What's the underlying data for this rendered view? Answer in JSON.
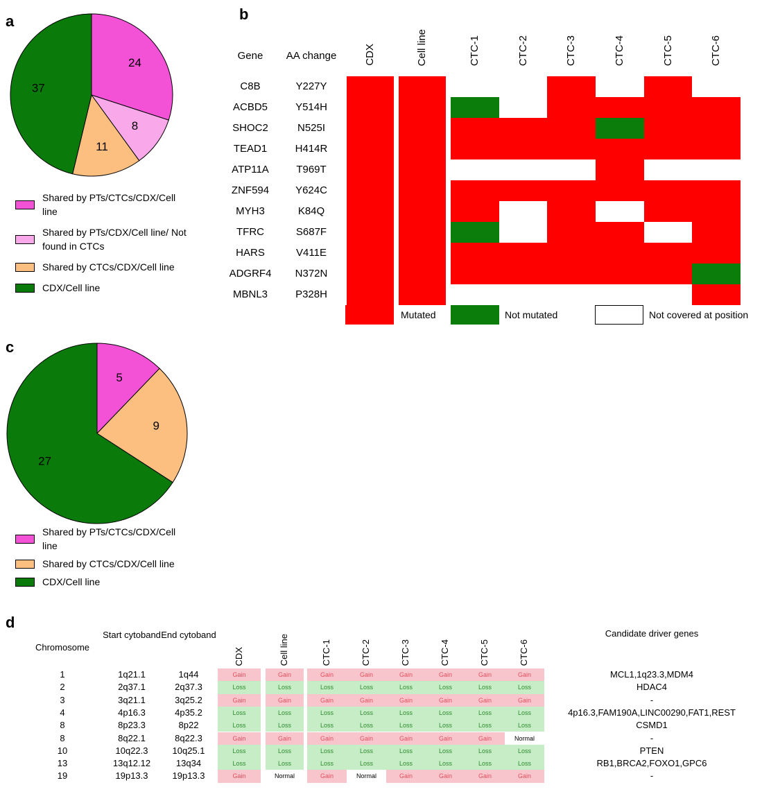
{
  "chart_data": [
    {
      "type": "pie",
      "label": "a",
      "categories": [
        "Shared by PTs/CTCs/CDX/Cell line",
        "Shared by PTs/CDX/Cell line/ Not found in CTCs",
        "Shared by CTCs/CDX/Cell line",
        "CDX/Cell line"
      ],
      "values": [
        24,
        8,
        11,
        37
      ],
      "colors": [
        "#f352d6",
        "#f9a9ea",
        "#fdbf80",
        "#0a7a0a"
      ]
    },
    {
      "type": "heatmap",
      "label": "b",
      "row_headers": [
        "Gene",
        "AA change"
      ],
      "columns": [
        "CDX",
        "Cell line",
        "CTC-1",
        "CTC-2",
        "CTC-3",
        "CTC-4",
        "CTC-5",
        "CTC-6"
      ],
      "rows": [
        [
          "C8B",
          "Y227Y"
        ],
        [
          "ACBD5",
          "Y514H"
        ],
        [
          "SHOC2",
          "N525I"
        ],
        [
          "TEAD1",
          "H414R"
        ],
        [
          "ATP11A",
          "T969T"
        ],
        [
          "ZNF594",
          "Y624C"
        ],
        [
          "MYH3",
          "K84Q"
        ],
        [
          "TFRC",
          "S687F"
        ],
        [
          "HARS",
          "V411E"
        ],
        [
          "ADGRF4",
          "N372N"
        ],
        [
          "MBNL3",
          "P328H"
        ]
      ],
      "legend": [
        {
          "name": "Mutated",
          "color": "#ff0000"
        },
        {
          "name": "Not mutated",
          "color": "#0a7d0a"
        },
        {
          "name": "Not covered at position",
          "color": "#ffffff"
        }
      ],
      "matrix": [
        [
          0,
          0,
          2,
          2,
          0,
          2,
          0,
          2
        ],
        [
          0,
          0,
          1,
          2,
          0,
          0,
          0,
          0
        ],
        [
          0,
          0,
          0,
          0,
          0,
          1,
          0,
          0
        ],
        [
          0,
          0,
          0,
          0,
          0,
          0,
          0,
          0
        ],
        [
          0,
          0,
          2,
          2,
          2,
          0,
          2,
          2
        ],
        [
          0,
          0,
          0,
          0,
          0,
          0,
          0,
          0
        ],
        [
          0,
          0,
          0,
          2,
          0,
          2,
          0,
          0
        ],
        [
          0,
          0,
          1,
          2,
          0,
          0,
          2,
          0
        ],
        [
          0,
          0,
          0,
          0,
          0,
          0,
          0,
          0
        ],
        [
          0,
          0,
          0,
          0,
          0,
          0,
          0,
          1
        ],
        [
          0,
          0,
          2,
          2,
          2,
          2,
          2,
          0
        ]
      ]
    },
    {
      "type": "pie",
      "label": "c",
      "categories": [
        "Shared by PTs/CTCs/CDX/Cell line",
        "Shared by CTCs/CDX/Cell line",
        "CDX/Cell line"
      ],
      "values": [
        5,
        9,
        27
      ],
      "colors": [
        "#f352d6",
        "#fdbf80",
        "#0a7a0a"
      ]
    },
    {
      "type": "table",
      "label": "d",
      "header": [
        "Chromosome",
        "Start cytoband",
        "End cytoband",
        "CDX",
        "Cell line",
        "CTC-1",
        "CTC-2",
        "CTC-3",
        "CTC-4",
        "CTC-5",
        "CTC-6",
        "Candidate driver genes"
      ],
      "rows": [
        [
          "1",
          "1q21.1",
          "1q44",
          "Gain",
          "Gain",
          "Gain",
          "Gain",
          "Gain",
          "Gain",
          "Gain",
          "Gain",
          "MCL1,1q23.3,MDM4"
        ],
        [
          "2",
          "2q37.1",
          "2q37.3",
          "Loss",
          "Loss",
          "Loss",
          "Loss",
          "Loss",
          "Loss",
          "Loss",
          "Loss",
          "HDAC4"
        ],
        [
          "3",
          "3q21.1",
          "3q25.2",
          "Gain",
          "Gain",
          "Gain",
          "Gain",
          "Gain",
          "Gain",
          "Gain",
          "Gain",
          "-"
        ],
        [
          "4",
          "4p16.3",
          "4p35.2",
          "Loss",
          "Loss",
          "Loss",
          "Loss",
          "Loss",
          "Loss",
          "Loss",
          "Loss",
          "4p16.3,FAM190A,LINC00290,FAT1,REST"
        ],
        [
          "8",
          "8p23.3",
          "8p22",
          "Loss",
          "Loss",
          "Loss",
          "Loss",
          "Loss",
          "Loss",
          "Loss",
          "Loss",
          "CSMD1"
        ],
        [
          "8",
          "8q22.1",
          "8q22.3",
          "Gain",
          "Gain",
          "Gain",
          "Gain",
          "Gain",
          "Gain",
          "Gain",
          "Normal",
          "-"
        ],
        [
          "10",
          "10q22.3",
          "10q25.1",
          "Loss",
          "Loss",
          "Loss",
          "Loss",
          "Loss",
          "Loss",
          "Loss",
          "Loss",
          "PTEN"
        ],
        [
          "13",
          "13q12.12",
          "13q34",
          "Loss",
          "Loss",
          "Loss",
          "Loss",
          "Loss",
          "Loss",
          "Loss",
          "Loss",
          "RB1,BRCA2,FOXO1,GPC6"
        ],
        [
          "19",
          "19p13.3",
          "19p13.3",
          "Gain",
          "Normal",
          "Gain",
          "Normal",
          "Gain",
          "Gain",
          "Gain",
          "Gain",
          "-"
        ]
      ],
      "status_styles": [
        {
          "status": "Gain",
          "fill": "#f9c5cc",
          "text": "#e0505e"
        },
        {
          "status": "Loss",
          "fill": "#c7edc7",
          "text": "#2d8a2d"
        },
        {
          "status": "Normal",
          "fill": "#ffffff",
          "text": "#000000"
        }
      ]
    }
  ]
}
